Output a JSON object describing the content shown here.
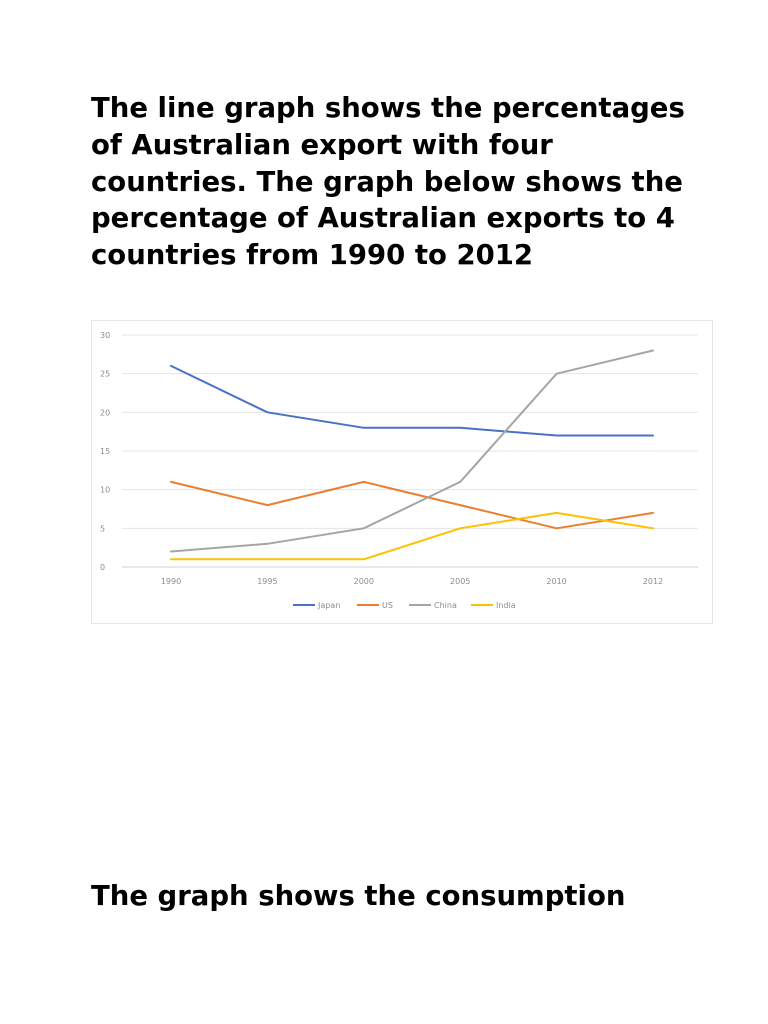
{
  "page": {
    "paragraph_1": "The line graph shows the percentages of Australian export with four countries. The graph below shows the percentage of Australian exports to 4 countries from 1990 to 2012",
    "paragraph_2": "The graph shows the consumption"
  },
  "chart_data": {
    "type": "line",
    "title": "",
    "xlabel": "",
    "ylabel": "",
    "x": [
      "1990",
      "1995",
      "2000",
      "2005",
      "2010",
      "2012"
    ],
    "ylim": [
      0,
      30
    ],
    "yticks": [
      0,
      5,
      10,
      15,
      20,
      25,
      30
    ],
    "grid": true,
    "legend_position": "bottom",
    "series": [
      {
        "name": "Japan",
        "color": "#4a72c4",
        "values": [
          26,
          20,
          18,
          18,
          17,
          17
        ]
      },
      {
        "name": "US",
        "color": "#ed7d31",
        "values": [
          11,
          8,
          11,
          8,
          5,
          7
        ]
      },
      {
        "name": "China",
        "color": "#a5a5a5",
        "values": [
          2,
          3,
          5,
          11,
          25,
          28
        ]
      },
      {
        "name": "India",
        "color": "#ffc000",
        "values": [
          1,
          1,
          1,
          5,
          7,
          5
        ]
      }
    ]
  }
}
